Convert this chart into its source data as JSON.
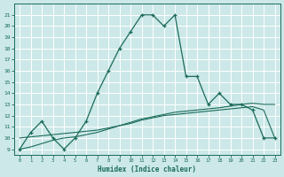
{
  "xlabel": "Humidex (Indice chaleur)",
  "bg_color": "#cce8e8",
  "line_color": "#1a6b5a",
  "grid_color": "#ffffff",
  "xlim": [
    -0.5,
    23.5
  ],
  "ylim": [
    8.5,
    22.0
  ],
  "xticks": [
    0,
    1,
    2,
    3,
    4,
    5,
    6,
    7,
    8,
    9,
    10,
    11,
    12,
    13,
    14,
    15,
    16,
    17,
    18,
    19,
    20,
    21,
    22,
    23
  ],
  "yticks": [
    9,
    10,
    11,
    12,
    13,
    14,
    15,
    16,
    17,
    18,
    19,
    20,
    21
  ],
  "curve1_x": [
    0,
    1,
    2,
    3,
    4,
    5,
    6,
    7,
    8,
    9,
    10,
    11,
    12,
    13,
    14,
    15,
    16,
    17,
    18,
    19,
    20,
    21,
    22,
    23
  ],
  "curve1_y": [
    9,
    10.5,
    11.5,
    10,
    9,
    10,
    11.5,
    14,
    16,
    18,
    19.5,
    21,
    21,
    20,
    21,
    15.5,
    15.5,
    13,
    14,
    13,
    13,
    12.5,
    10,
    10
  ],
  "curve2_x": [
    0,
    1,
    2,
    3,
    4,
    5,
    6,
    7,
    8,
    9,
    10,
    11,
    12,
    13,
    14,
    15,
    16,
    17,
    18,
    19,
    20,
    21,
    22,
    23
  ],
  "curve2_y": [
    9.0,
    9.2,
    9.5,
    9.8,
    10.0,
    10.1,
    10.3,
    10.5,
    10.8,
    11.1,
    11.4,
    11.7,
    11.9,
    12.1,
    12.3,
    12.4,
    12.5,
    12.6,
    12.7,
    12.85,
    13.0,
    13.1,
    13.0,
    13.0
  ],
  "curve3_x": [
    0,
    1,
    2,
    3,
    4,
    5,
    6,
    7,
    8,
    9,
    10,
    11,
    12,
    13,
    14,
    15,
    16,
    17,
    18,
    19,
    20,
    21,
    22,
    23
  ],
  "curve3_y": [
    10.0,
    10.1,
    10.2,
    10.3,
    10.4,
    10.5,
    10.6,
    10.7,
    10.9,
    11.1,
    11.3,
    11.6,
    11.8,
    12.0,
    12.1,
    12.2,
    12.3,
    12.4,
    12.5,
    12.6,
    12.7,
    12.8,
    12.5,
    10.0
  ]
}
